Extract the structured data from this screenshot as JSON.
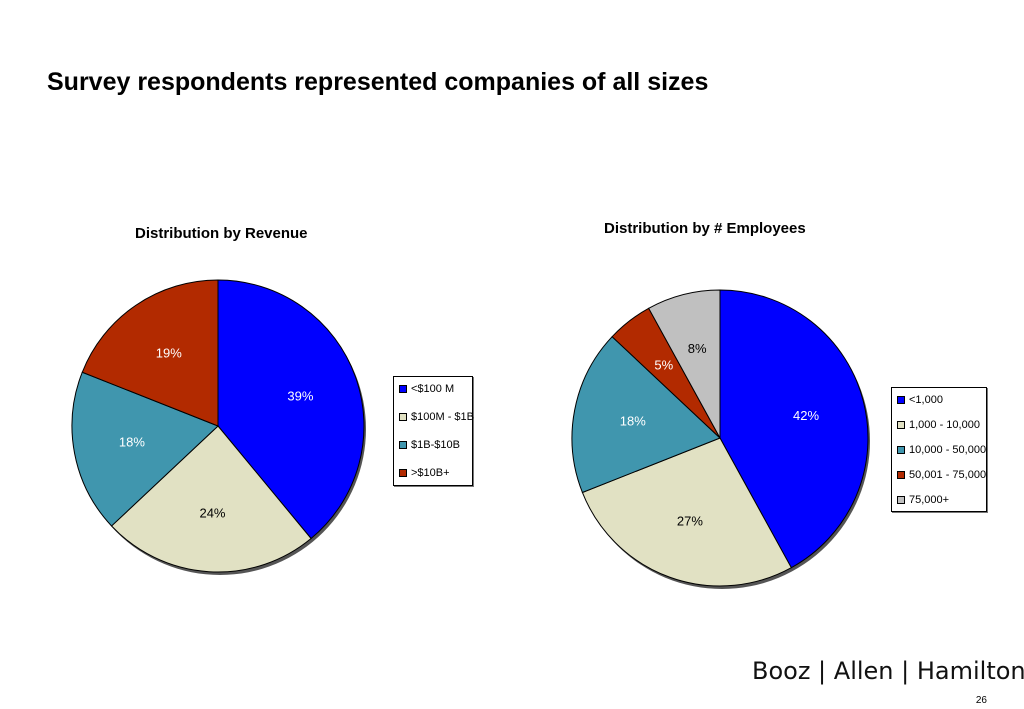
{
  "slide": {
    "title": "Survey respondents represented companies of all sizes",
    "brand": "Booz | Allen | Hamilton",
    "page_number": "26"
  },
  "chart_data": [
    {
      "type": "pie",
      "title": "Distribution by Revenue",
      "categories": [
        "<$100 M",
        "$100M - $1B",
        "$1B-$10B",
        ">$10B+"
      ],
      "values": [
        39,
        24,
        18,
        19
      ],
      "data_labels": [
        "39%",
        "24%",
        "18%",
        "19%"
      ],
      "colors": [
        "#0000ff",
        "#e1e1c3",
        "#4096ae",
        "#b22a00"
      ],
      "label_colors": [
        "#ffffff",
        "#000000",
        "#ffffff",
        "#ffffff"
      ],
      "legend_position": "right"
    },
    {
      "type": "pie",
      "title": "Distribution by # Employees",
      "categories": [
        "<1,000",
        "1,000 - 10,000",
        "10,000 - 50,000",
        "50,001 - 75,000",
        "75,000+"
      ],
      "values": [
        42,
        27,
        18,
        5,
        8
      ],
      "data_labels": [
        "42%",
        "27%",
        "18%",
        "5%",
        "8%"
      ],
      "colors": [
        "#0000ff",
        "#e1e1c3",
        "#4096ae",
        "#b22a00",
        "#c0c0c0"
      ],
      "label_colors": [
        "#ffffff",
        "#000000",
        "#ffffff",
        "#ffffff",
        "#000000"
      ],
      "legend_position": "right"
    }
  ]
}
